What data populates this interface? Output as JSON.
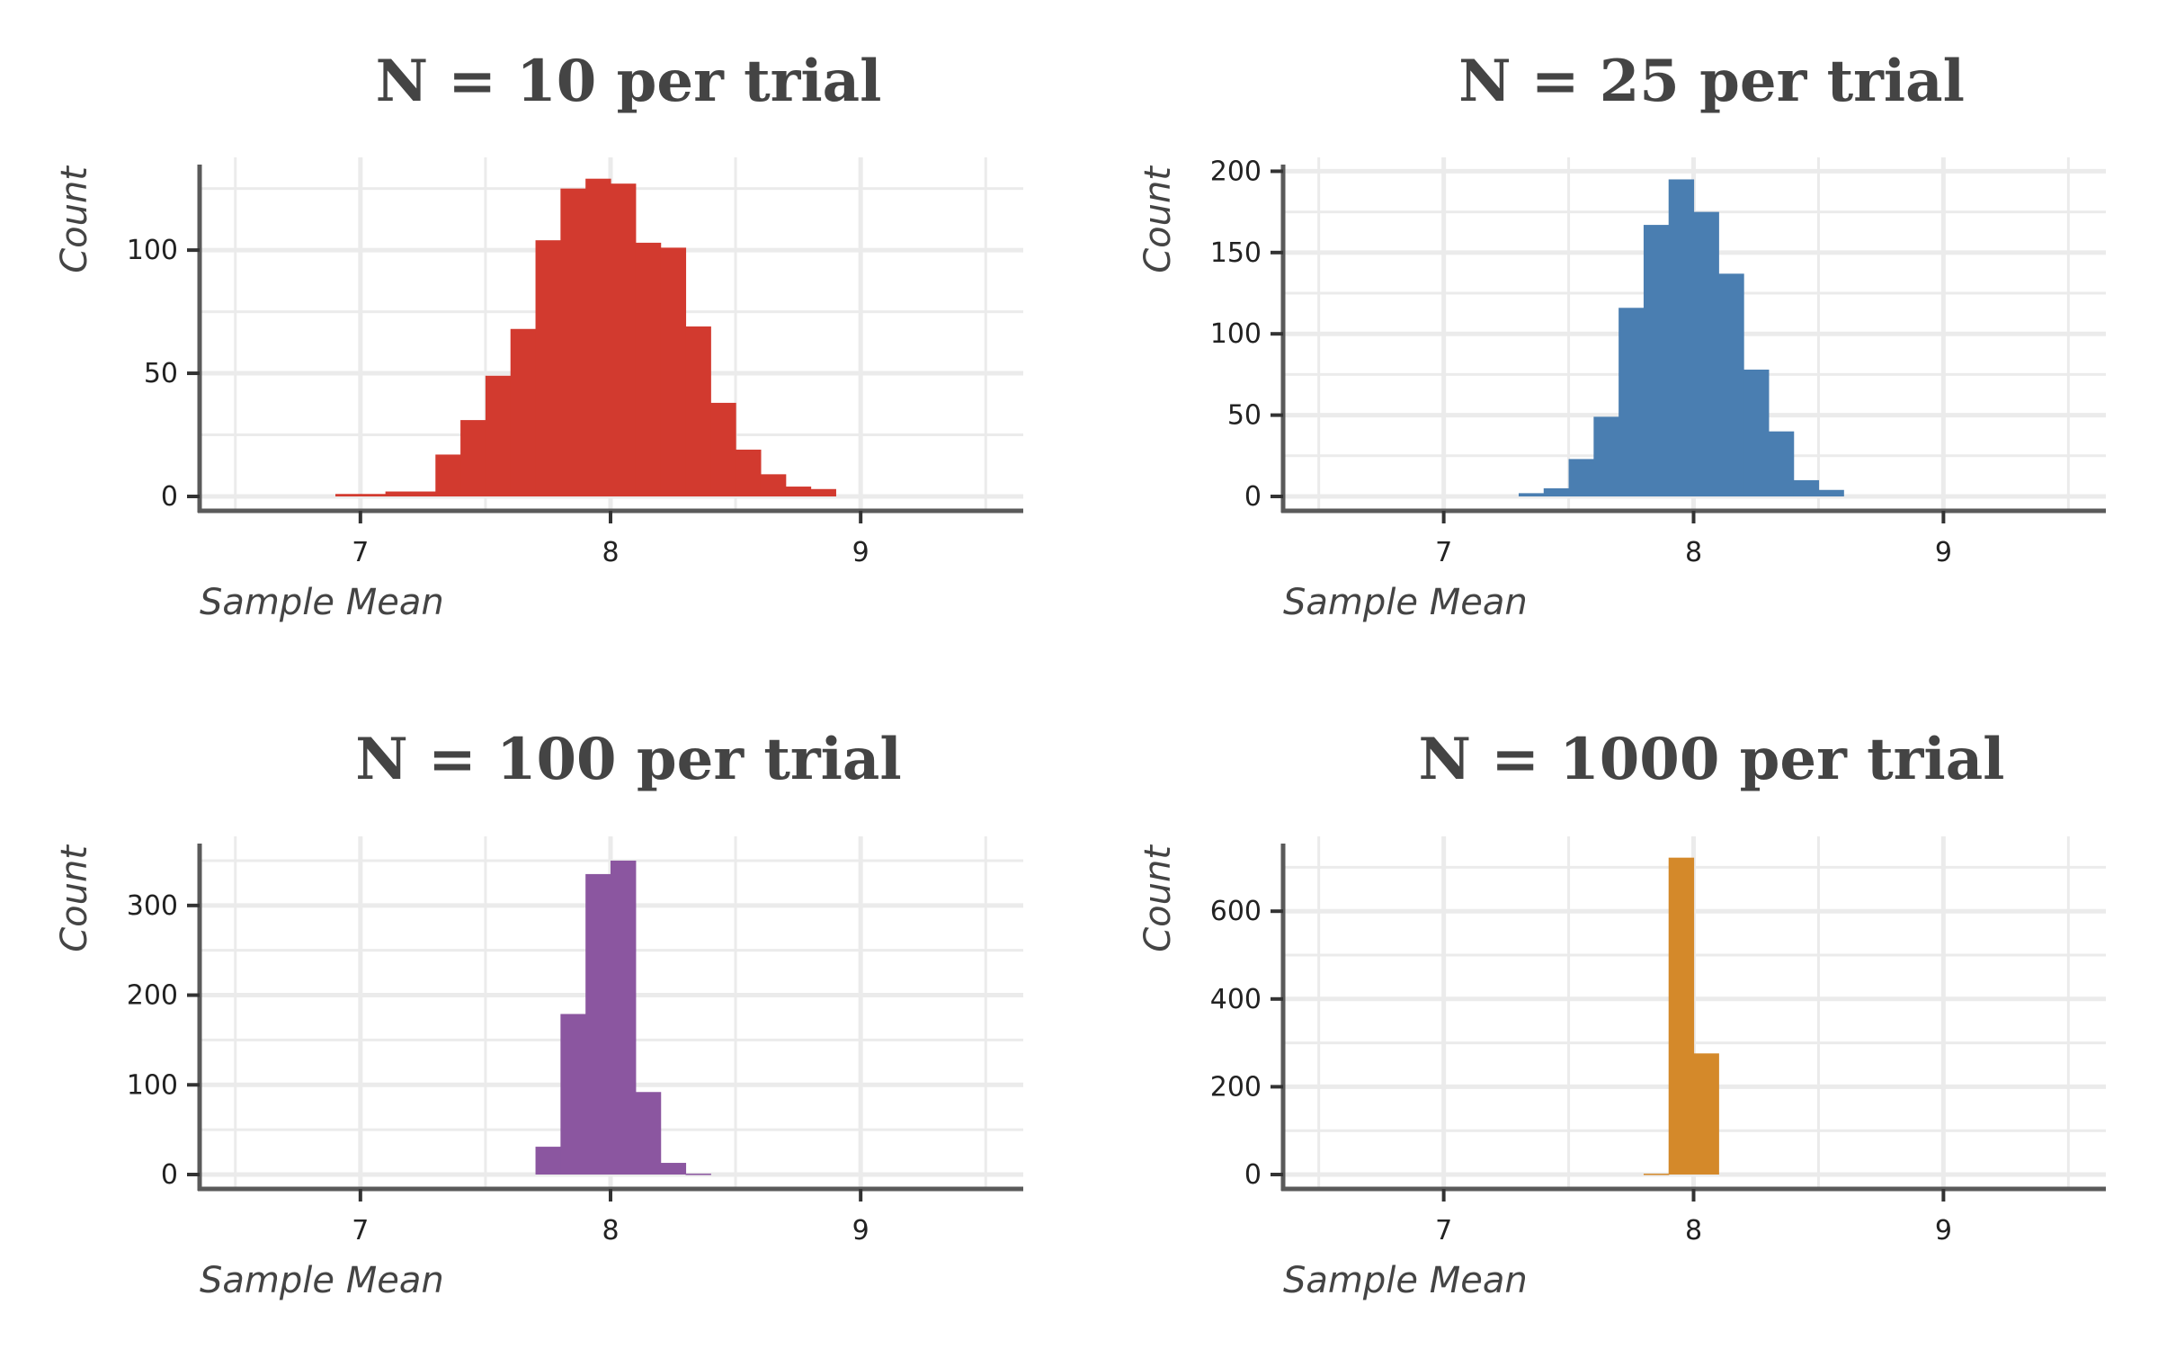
{
  "chart_data": [
    {
      "type": "bar",
      "title": "N = 10 per trial",
      "xlabel": "Sample Mean",
      "ylabel": "Count",
      "color": "#D23A2F",
      "xlim": [
        6.35,
        9.65
      ],
      "ylim": [
        0,
        134
      ],
      "xticks": [
        7,
        8,
        9
      ],
      "yticks": [
        0,
        50,
        100
      ],
      "bin_width": 0.1,
      "bins": [
        {
          "x": 6.9,
          "count": 1
        },
        {
          "x": 7.0,
          "count": 1
        },
        {
          "x": 7.1,
          "count": 2
        },
        {
          "x": 7.2,
          "count": 2
        },
        {
          "x": 7.3,
          "count": 17
        },
        {
          "x": 7.4,
          "count": 31
        },
        {
          "x": 7.5,
          "count": 49
        },
        {
          "x": 7.6,
          "count": 68
        },
        {
          "x": 7.7,
          "count": 104
        },
        {
          "x": 7.8,
          "count": 125
        },
        {
          "x": 7.9,
          "count": 129
        },
        {
          "x": 8.0,
          "count": 127
        },
        {
          "x": 8.1,
          "count": 103
        },
        {
          "x": 8.2,
          "count": 101
        },
        {
          "x": 8.3,
          "count": 69
        },
        {
          "x": 8.4,
          "count": 38
        },
        {
          "x": 8.5,
          "count": 19
        },
        {
          "x": 8.6,
          "count": 9
        },
        {
          "x": 8.7,
          "count": 4
        },
        {
          "x": 8.8,
          "count": 3
        }
      ]
    },
    {
      "type": "bar",
      "title": "N = 25 per trial",
      "xlabel": "Sample Mean",
      "ylabel": "Count",
      "color": "#4A7EB1",
      "xlim": [
        6.35,
        9.65
      ],
      "ylim": [
        0,
        203
      ],
      "xticks": [
        7,
        8,
        9
      ],
      "yticks": [
        0,
        50,
        100,
        150,
        200
      ],
      "bin_width": 0.1,
      "bins": [
        {
          "x": 7.3,
          "count": 2
        },
        {
          "x": 7.4,
          "count": 5
        },
        {
          "x": 7.5,
          "count": 23
        },
        {
          "x": 7.6,
          "count": 49
        },
        {
          "x": 7.7,
          "count": 116
        },
        {
          "x": 7.8,
          "count": 167
        },
        {
          "x": 7.9,
          "count": 195
        },
        {
          "x": 8.0,
          "count": 175
        },
        {
          "x": 8.1,
          "count": 137
        },
        {
          "x": 8.2,
          "count": 78
        },
        {
          "x": 8.3,
          "count": 40
        },
        {
          "x": 8.4,
          "count": 10
        },
        {
          "x": 8.5,
          "count": 4
        }
      ]
    },
    {
      "type": "bar",
      "title": "N = 100 per trial",
      "xlabel": "Sample Mean",
      "ylabel": "Count",
      "color": "#8B56A0",
      "xlim": [
        6.35,
        9.65
      ],
      "ylim": [
        0,
        367
      ],
      "xticks": [
        7,
        8,
        9
      ],
      "yticks": [
        0,
        100,
        200,
        300
      ],
      "bin_width": 0.1,
      "bins": [
        {
          "x": 7.7,
          "count": 31
        },
        {
          "x": 7.8,
          "count": 179
        },
        {
          "x": 7.9,
          "count": 335
        },
        {
          "x": 8.0,
          "count": 350
        },
        {
          "x": 8.1,
          "count": 92
        },
        {
          "x": 8.2,
          "count": 13
        },
        {
          "x": 8.3,
          "count": 1
        }
      ]
    },
    {
      "type": "bar",
      "title": "N = 1000 per trial",
      "xlabel": "Sample Mean",
      "ylabel": "Count",
      "color": "#D4892A",
      "xlim": [
        6.35,
        9.65
      ],
      "ylim": [
        0,
        750
      ],
      "xticks": [
        7,
        8,
        9
      ],
      "yticks": [
        0,
        200,
        400,
        600
      ],
      "bin_width": 0.1,
      "bins": [
        {
          "x": 7.8,
          "count": 2
        },
        {
          "x": 7.9,
          "count": 722
        },
        {
          "x": 8.0,
          "count": 276
        }
      ]
    }
  ]
}
